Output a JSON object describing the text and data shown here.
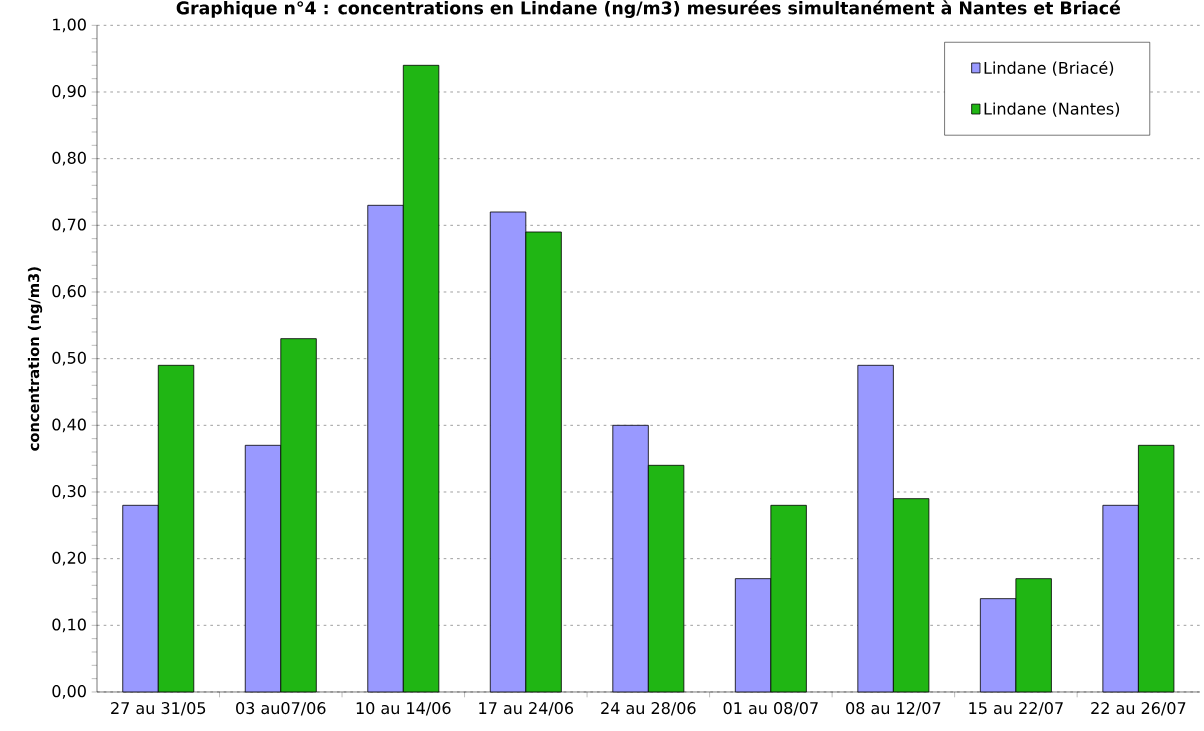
{
  "chart_data": {
    "type": "bar",
    "title": "Graphique n°4 : concentrations en Lindane (ng/m3) mesurées simultanément à Nantes et Briacé",
    "ylabel": "concentration (ng/m3)",
    "categories": [
      "27 au 31/05",
      "03 au07/06",
      "10 au 14/06",
      "17 au 24/06",
      "24 au 28/06",
      "01 au 08/07",
      "08 au 12/07",
      "15 au 22/07",
      "22 au 26/07"
    ],
    "series": [
      {
        "name": "Lindane (Briacé)",
        "color": "#9999ff",
        "values": [
          0.28,
          0.37,
          0.73,
          0.72,
          0.4,
          0.17,
          0.49,
          0.14,
          0.28
        ]
      },
      {
        "name": "Lindane (Nantes)",
        "color": "#20b614",
        "values": [
          0.49,
          0.53,
          0.94,
          0.69,
          0.34,
          0.28,
          0.29,
          0.17,
          0.37
        ]
      }
    ],
    "ylim": [
      0,
      1
    ],
    "yticks": [
      {
        "value": 0,
        "label": "0,00"
      },
      {
        "value": 0.1,
        "label": "0,10"
      },
      {
        "value": 0.2,
        "label": "0,20"
      },
      {
        "value": 0.3,
        "label": "0,30"
      },
      {
        "value": 0.4,
        "label": "0,40"
      },
      {
        "value": 0.5,
        "label": "0,50"
      },
      {
        "value": 0.6,
        "label": "0,60"
      },
      {
        "value": 0.7,
        "label": "0,70"
      },
      {
        "value": 0.8,
        "label": "0,80"
      },
      {
        "value": 0.9,
        "label": "0,90"
      },
      {
        "value": 1,
        "label": "1,00"
      }
    ],
    "grid": "y",
    "legend": "top right"
  }
}
